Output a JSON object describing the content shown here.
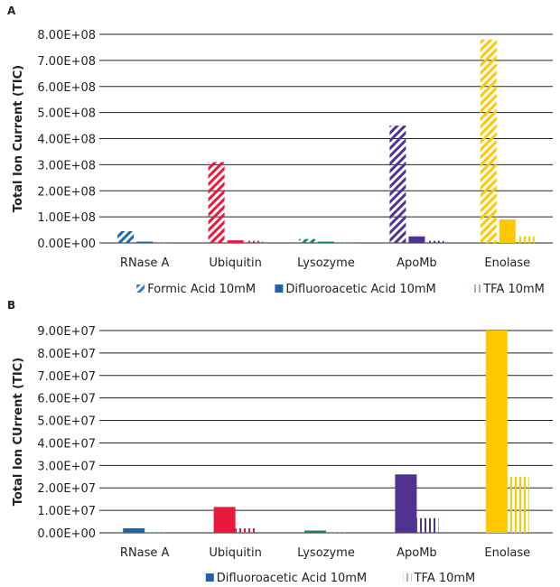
{
  "category_colors": {
    "RNase A": "#1f64a8",
    "Ubiquitin": "#e8193c",
    "Lysozyme": "#13875a",
    "ApoMb": "#503291",
    "Enolase": "#ffc800"
  },
  "chart_data": [
    {
      "panel_label": "A",
      "type": "bar",
      "ylabel": "Total Ion Current (TIC)",
      "ylim": [
        0,
        800000000
      ],
      "yticks": [
        "0.00E+00",
        "1.00E+08",
        "2.00E+08",
        "3.00E+08",
        "4.00E+08",
        "5.00E+08",
        "6.00E+08",
        "7.00E+08",
        "8.00E+08"
      ],
      "grid": true,
      "legend_placement": "bottom",
      "categories": [
        "RNase A",
        "Ubiquitin",
        "Lysozyme",
        "ApoMb",
        "Enolase"
      ],
      "series": [
        {
          "name": "Formic Acid 10mM",
          "pattern": "diagonal-hatch",
          "values": [
            45000000,
            310000000,
            15000000,
            450000000,
            780000000
          ]
        },
        {
          "name": "Difluoroacetic Acid 10mM",
          "pattern": "solid",
          "values": [
            5000000,
            10000000,
            5000000,
            25000000,
            90000000
          ]
        },
        {
          "name": "TFA 10mM",
          "pattern": "vertical-stripes",
          "values": [
            1000000,
            8000000,
            1000000,
            8000000,
            25000000
          ]
        }
      ]
    },
    {
      "panel_label": "B",
      "type": "bar",
      "ylabel": "Total Ion CUrrent (TIC)",
      "ylim": [
        0,
        90000000
      ],
      "yticks": [
        "0.00E+00",
        "1.00E+07",
        "2.00E+07",
        "3.00E+07",
        "4.00E+07",
        "5.00E+07",
        "6.00E+07",
        "7.00E+07",
        "8.00E+07",
        "9.00E+07"
      ],
      "grid": true,
      "legend_placement": "bottom",
      "categories": [
        "RNase A",
        "Ubiquitin",
        "Lysozyme",
        "ApoMb",
        "Enolase"
      ],
      "series": [
        {
          "name": "Difluoroacetic Acid 10mM",
          "pattern": "solid",
          "values": [
            2000000,
            11500000,
            1000000,
            26000000,
            90000000
          ]
        },
        {
          "name": "TFA 10mM",
          "pattern": "vertical-stripes",
          "values": [
            200000,
            2000000,
            100000,
            6500000,
            25000000
          ]
        }
      ]
    }
  ]
}
